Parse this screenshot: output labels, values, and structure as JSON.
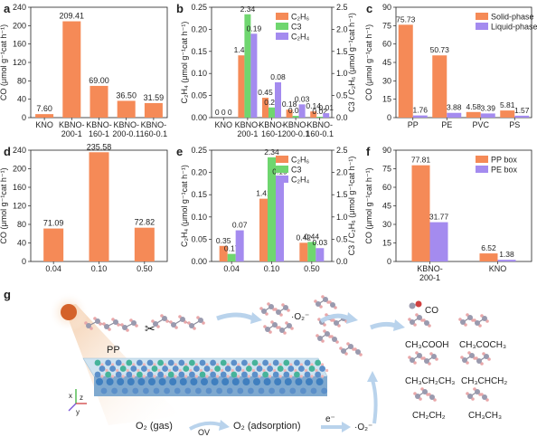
{
  "colors": {
    "orange": "#F58A57",
    "green": "#6FD66F",
    "purple": "#A48BEF",
    "sun": "#D4622A",
    "atom_gray": "#9A9AAE",
    "atom_pink": "#E9A7A9",
    "atom_red": "#D04040",
    "arrow": "#B9D3EC"
  },
  "chart_data": [
    {
      "panel": "a",
      "type": "bar",
      "ylabel": "CO (μmol g⁻¹cat h⁻¹)",
      "ylim": [
        0,
        240
      ],
      "yticks": [
        0,
        40,
        80,
        120,
        160,
        200,
        240
      ],
      "categories": [
        "KNO",
        "KBNO-200-1",
        "KBNO-160-1",
        "KBNO-200-0.1",
        "KBNO-160-0.1"
      ],
      "cat_labels": [
        [
          "KNO"
        ],
        [
          "KBNO-",
          "200-1"
        ],
        [
          "KBNO-",
          "160-1"
        ],
        [
          "KBNO-",
          "200-0.1"
        ],
        [
          "KBNO-",
          "160-0.1"
        ]
      ],
      "values": [
        7.6,
        209.41,
        69.0,
        36.5,
        31.59
      ],
      "value_labels": [
        "7.60",
        "209.41",
        "69.00",
        "36.50",
        "31.59"
      ]
    },
    {
      "panel": "b",
      "type": "bar",
      "ylabel_left": "C₂H₄ (μmol g⁻¹cat h⁻¹)",
      "ylabel_right": "C3 / C₂H₆ (μmol g⁻¹cat h⁻¹)",
      "ylim_left": [
        0,
        0.25
      ],
      "yticks_left": [
        "0.00",
        "0.05",
        "0.10",
        "0.15",
        "0.20",
        "0.25"
      ],
      "ylim_right": [
        0,
        2.5
      ],
      "yticks_right": [
        "0.0",
        "0.5",
        "1.0",
        "1.5",
        "2.0",
        "2.5"
      ],
      "categories": [
        "KNO",
        "KBNO-200-1",
        "KBNO-160-1",
        "KBNO-200-0.1",
        "KBNO-160-0.1"
      ],
      "cat_labels": [
        [
          "KNO"
        ],
        [
          "KBNO-",
          "200-1"
        ],
        [
          "KBNO-",
          "160-1"
        ],
        [
          "KBNO-",
          "200-0.1"
        ],
        [
          "KBNO-",
          "160-0.1"
        ]
      ],
      "legend": [
        "C₂H₆",
        "C3",
        "C₂H₄"
      ],
      "series": [
        {
          "name": "C₂H₆",
          "axis": "right",
          "values": [
            0,
            1.41,
            0.45,
            0.18,
            0.14
          ],
          "labels": [
            "0",
            "1.41",
            "0.45",
            "0.18",
            "0.14"
          ]
        },
        {
          "name": "C3",
          "axis": "right",
          "values": [
            0,
            2.34,
            0.23,
            0.04,
            0.02
          ],
          "labels": [
            "0",
            "2.34",
            "0.23",
            "0.04",
            "0.02"
          ]
        },
        {
          "name": "C₂H₄",
          "axis": "left",
          "values": [
            0,
            0.19,
            0.08,
            0.03,
            0.01
          ],
          "labels": [
            "0",
            "0.19",
            "0.08",
            "0.03",
            "0.01"
          ]
        }
      ]
    },
    {
      "panel": "c",
      "type": "bar",
      "ylabel": "CO (μmol g⁻¹cat h⁻¹)",
      "ylim": [
        0,
        90
      ],
      "yticks": [
        0,
        15,
        30,
        45,
        60,
        75,
        90
      ],
      "categories": [
        "PP",
        "PE",
        "PVC",
        "PS"
      ],
      "legend": [
        "Solid-phase",
        "Liquid-phase"
      ],
      "series": [
        {
          "name": "Solid-phase",
          "values": [
            75.73,
            50.73,
            4.58,
            5.81
          ],
          "labels": [
            "75.73",
            "50.73",
            "4.58",
            "5.81"
          ]
        },
        {
          "name": "Liquid-phase",
          "values": [
            1.76,
            3.88,
            3.39,
            1.57
          ],
          "labels": [
            "1.76",
            "3.88",
            "3.39",
            "1.57"
          ]
        }
      ]
    },
    {
      "panel": "d",
      "type": "bar",
      "ylabel": "CO (μmol g⁻¹cat h⁻¹)",
      "ylim": [
        0,
        240
      ],
      "yticks": [
        0,
        40,
        80,
        120,
        160,
        200,
        240
      ],
      "categories": [
        "0.04",
        "0.10",
        "0.50"
      ],
      "values": [
        71.09,
        235.58,
        72.82
      ],
      "value_labels": [
        "71.09",
        "235.58",
        "72.82"
      ]
    },
    {
      "panel": "e",
      "type": "bar",
      "ylabel_left": "C₂H₄ (μmol g⁻¹cat h⁻¹)",
      "ylabel_right": "C3 / C₂H₆ (μmol g⁻¹cat h⁻¹)",
      "ylim_left": [
        0,
        0.25
      ],
      "yticks_left": [
        "0.00",
        "0.05",
        "0.10",
        "0.15",
        "0.20",
        "0.25"
      ],
      "ylim_right": [
        0,
        2.5
      ],
      "yticks_right": [
        "0.0",
        "0.5",
        "1.0",
        "1.5",
        "2.0",
        "2.5"
      ],
      "categories": [
        "0.04",
        "0.10",
        "0.50"
      ],
      "legend": [
        "C₂H₆",
        "C3",
        "C₂H₄"
      ],
      "series": [
        {
          "name": "C₂H₆",
          "axis": "right",
          "values": [
            0.35,
            1.41,
            0.42
          ],
          "labels": [
            "0.35",
            "1.41",
            "0.42"
          ]
        },
        {
          "name": "C3",
          "axis": "right",
          "values": [
            0.17,
            2.34,
            0.44
          ],
          "labels": [
            "0.17",
            "2.34",
            "0.44"
          ]
        },
        {
          "name": "C₂H₄",
          "axis": "left",
          "values": [
            0.07,
            0.19,
            0.03
          ],
          "labels": [
            "0.07",
            "0.19",
            "0.03"
          ]
        }
      ]
    },
    {
      "panel": "f",
      "type": "bar",
      "ylabel": "CO (μmol g⁻¹cat h⁻¹)",
      "ylim": [
        0,
        90
      ],
      "yticks": [
        0,
        15,
        30,
        45,
        60,
        75,
        90
      ],
      "categories": [
        "KBNO-200-1",
        "KNO"
      ],
      "cat_labels": [
        [
          "KBNO-",
          "200-1"
        ],
        [
          "KNO"
        ]
      ],
      "legend": [
        "PP box",
        "PE box"
      ],
      "series": [
        {
          "name": "PP box",
          "values": [
            77.81,
            6.52
          ],
          "labels": [
            "77.81",
            "6.52"
          ]
        },
        {
          "name": "PE box",
          "values": [
            31.77,
            1.38
          ],
          "labels": [
            "31.77",
            "1.38"
          ]
        }
      ]
    }
  ],
  "scheme": {
    "panel_label": "g",
    "pp_label": "PP",
    "o2_radical_top": "·O₂⁻",
    "o2_radical_bottom": "·O₂⁻",
    "electron": "e⁻",
    "o2_gas": "O₂ (gas)",
    "ov": "OV",
    "o2_adsorption": "O₂ (adsorption)",
    "axis_x": "x",
    "axis_y": "y",
    "axis_z": "z",
    "products": [
      "CO",
      "CH₃COOH",
      "CH₃COCH₃",
      "CH₃CH₂CH₃",
      "CH₃CHCH₂",
      "CH₂CH₂",
      "CH₃CH₃"
    ]
  }
}
